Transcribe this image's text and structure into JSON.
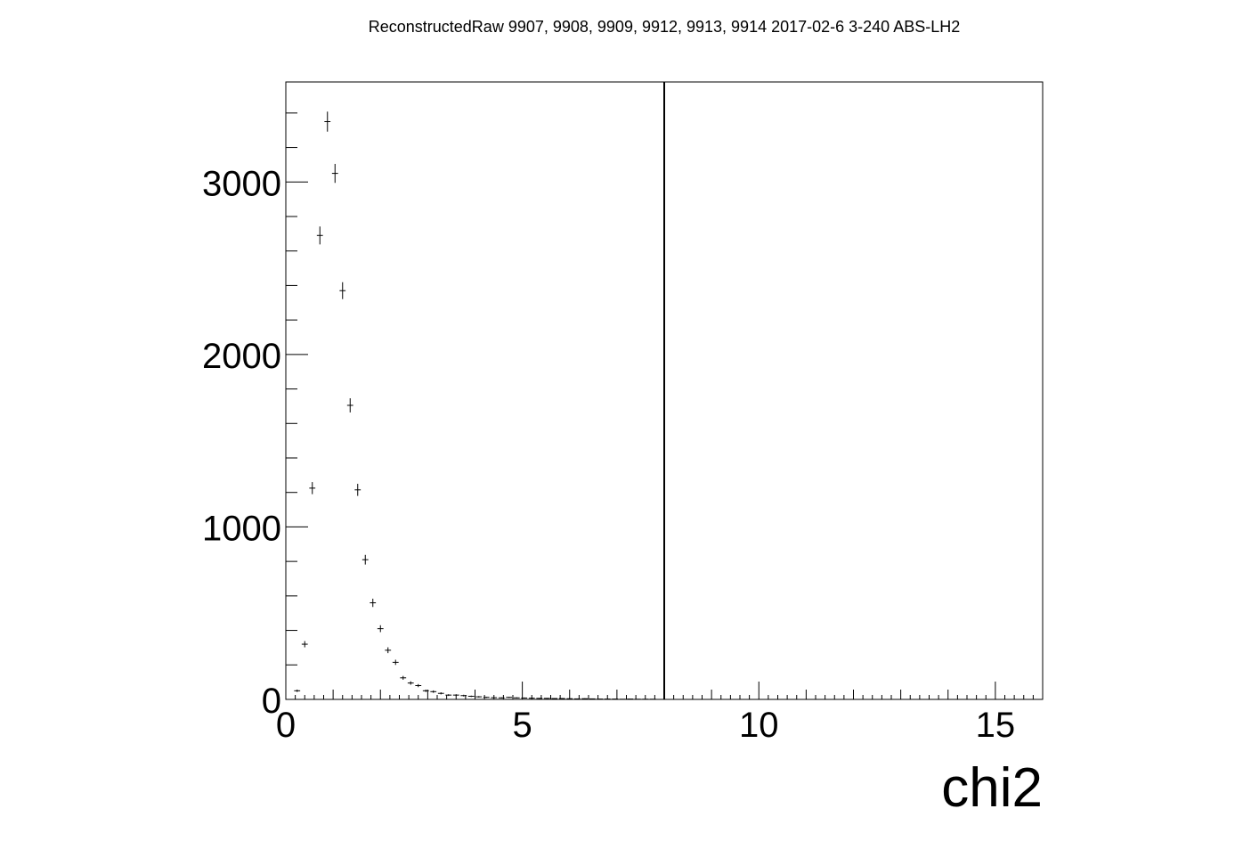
{
  "chart_data": {
    "type": "scatter",
    "title": "ReconstructedRaw 9907, 9908, 9909, 9912, 9913, 9914 2017-02-6 3-240 ABS-LH2",
    "xlabel": "chi2",
    "ylabel": "",
    "xlim": [
      0,
      16
    ],
    "ylim": [
      0,
      3580
    ],
    "x_ticks": [
      0,
      5,
      10,
      15
    ],
    "x_tick_labels": [
      "0",
      "5",
      "10",
      "15"
    ],
    "y_ticks": [
      0,
      1000,
      2000,
      3000
    ],
    "y_tick_labels": [
      "0",
      "1000",
      "2000",
      "3000"
    ],
    "bin_width": 0.16,
    "cut_line_x": 8.0,
    "grid": false,
    "legend": "none",
    "series": [
      {
        "name": "chi2",
        "x": [
          0.24,
          0.4,
          0.56,
          0.72,
          0.88,
          1.04,
          1.2,
          1.36,
          1.52,
          1.68,
          1.84,
          2.0,
          2.16,
          2.32,
          2.48,
          2.64,
          2.8,
          2.96,
          3.12,
          3.28,
          3.44,
          3.6,
          3.76,
          3.92,
          4.08,
          4.24,
          4.4,
          4.56,
          4.72,
          4.88,
          5.04,
          5.2,
          5.36,
          5.52,
          5.68,
          5.84,
          6.0,
          6.16,
          6.32,
          6.48,
          6.64,
          6.8,
          6.96,
          7.12,
          7.28,
          7.44,
          7.6,
          7.76
        ],
        "y": [
          50,
          320,
          1225,
          2690,
          3350,
          3050,
          2370,
          1705,
          1215,
          810,
          560,
          410,
          285,
          215,
          125,
          95,
          80,
          50,
          45,
          35,
          25,
          25,
          22,
          18,
          15,
          12,
          10,
          9,
          12,
          9,
          8,
          7,
          6,
          6,
          5,
          5,
          4,
          3,
          4,
          3,
          2,
          2,
          2,
          1,
          2,
          1,
          1,
          1
        ],
        "err": [
          7,
          18,
          35,
          52,
          58,
          55,
          49,
          41,
          35,
          28,
          24,
          20,
          17,
          15,
          11,
          10,
          9,
          7,
          7,
          6,
          5,
          5,
          5,
          4,
          4,
          3,
          3,
          3,
          3,
          3,
          3,
          3,
          2,
          2,
          2,
          2,
          2,
          2,
          2,
          2,
          1,
          1,
          1,
          1,
          1,
          1,
          1,
          1
        ]
      }
    ]
  }
}
